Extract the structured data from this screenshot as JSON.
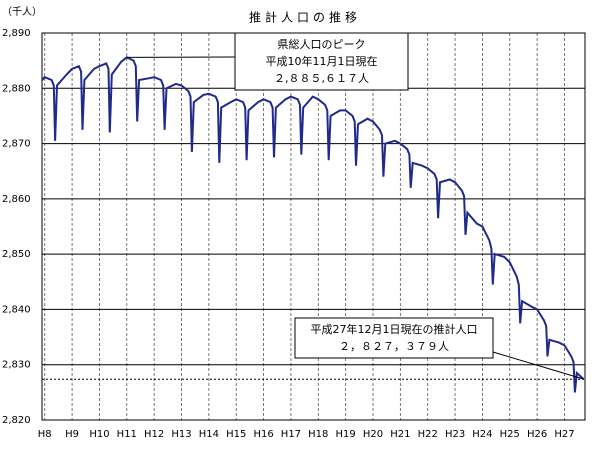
{
  "chart_data": {
    "type": "line",
    "title": "推計人口の推移",
    "y_unit": "（千人）",
    "color": "#1f2a8c",
    "grid": true,
    "x": [
      7.9,
      8.0,
      8.25,
      8.33,
      8.38,
      8.45,
      8.8,
      9.0,
      9.25,
      9.33,
      9.38,
      9.45,
      9.8,
      10.0,
      10.25,
      10.33,
      10.38,
      10.45,
      10.8,
      11.0,
      11.25,
      11.33,
      11.38,
      11.45,
      11.8,
      12.0,
      12.25,
      12.33,
      12.38,
      12.45,
      12.8,
      13.0,
      13.25,
      13.33,
      13.38,
      13.45,
      13.8,
      14.0,
      14.25,
      14.33,
      14.38,
      14.45,
      14.8,
      15.0,
      15.25,
      15.33,
      15.38,
      15.45,
      15.8,
      16.0,
      16.25,
      16.33,
      16.38,
      16.45,
      16.8,
      17.0,
      17.25,
      17.33,
      17.38,
      17.45,
      17.8,
      18.0,
      18.25,
      18.33,
      18.38,
      18.45,
      18.8,
      19.0,
      19.25,
      19.33,
      19.38,
      19.45,
      19.8,
      20.0,
      20.25,
      20.33,
      20.38,
      20.45,
      20.8,
      21.0,
      21.25,
      21.33,
      21.38,
      21.45,
      21.8,
      22.0,
      22.25,
      22.33,
      22.38,
      22.45,
      22.8,
      23.0,
      23.25,
      23.33,
      23.38,
      23.45,
      23.8,
      24.0,
      24.25,
      24.33,
      24.38,
      24.45,
      24.8,
      25.0,
      25.25,
      25.33,
      25.38,
      25.45,
      25.8,
      26.0,
      26.25,
      26.33,
      26.38,
      26.45,
      26.8,
      27.0,
      27.25,
      27.33,
      27.38,
      27.45,
      27.7
    ],
    "values": [
      2881.5,
      2882,
      2881.5,
      2880.5,
      2870.5,
      2880.5,
      2882.5,
      2883.5,
      2884,
      2883,
      2872.5,
      2881.5,
      2883.5,
      2884,
      2884.5,
      2883.5,
      2872,
      2882.5,
      2884.8,
      2885.6,
      2885,
      2884,
      2874,
      2881.5,
      2881.8,
      2882,
      2881.5,
      2880.5,
      2872.5,
      2880,
      2880.8,
      2880.5,
      2879.5,
      2878.5,
      2868.5,
      2877.5,
      2878.8,
      2879,
      2878.5,
      2877.5,
      2866.5,
      2876.5,
      2877.5,
      2878,
      2877.5,
      2876.5,
      2867,
      2876,
      2877.5,
      2878,
      2877.5,
      2876.5,
      2867.5,
      2876.5,
      2878,
      2878.5,
      2878,
      2877,
      2868,
      2876.5,
      2878.5,
      2878,
      2877,
      2876,
      2867,
      2875,
      2876,
      2876,
      2875,
      2874,
      2866,
      2873.5,
      2874.5,
      2874,
      2872.5,
      2871.5,
      2864,
      2870,
      2870.5,
      2870,
      2869,
      2868,
      2862,
      2866.5,
      2866,
      2865.5,
      2864.5,
      2863.5,
      2856.5,
      2863,
      2863.5,
      2863,
      2861.5,
      2860.5,
      2853.5,
      2857.5,
      2855.5,
      2855,
      2852.5,
      2851,
      2844.5,
      2850,
      2849.5,
      2848.5,
      2846,
      2844.5,
      2837.5,
      2841.5,
      2840.5,
      2840,
      2838,
      2837,
      2831.5,
      2834.5,
      2834,
      2833.5,
      2831.5,
      2830.5,
      2825,
      2828.5,
      2827.4
    ],
    "xlim": [
      7.9,
      27.75
    ],
    "xticks": [
      {
        "value": 8,
        "label": "H8"
      },
      {
        "value": 9,
        "label": "H9"
      },
      {
        "value": 10,
        "label": "H10"
      },
      {
        "value": 11,
        "label": "H11"
      },
      {
        "value": 12,
        "label": "H12"
      },
      {
        "value": 13,
        "label": "H13"
      },
      {
        "value": 14,
        "label": "H14"
      },
      {
        "value": 15,
        "label": "H15"
      },
      {
        "value": 16,
        "label": "H16"
      },
      {
        "value": 17,
        "label": "H17"
      },
      {
        "value": 18,
        "label": "H18"
      },
      {
        "value": 19,
        "label": "H19"
      },
      {
        "value": 20,
        "label": "H20"
      },
      {
        "value": 21,
        "label": "H21"
      },
      {
        "value": 22,
        "label": "H22"
      },
      {
        "value": 23,
        "label": "H23"
      },
      {
        "value": 24,
        "label": "H24"
      },
      {
        "value": 25,
        "label": "H25"
      },
      {
        "value": 26,
        "label": "H26"
      },
      {
        "value": 27,
        "label": "H27"
      }
    ],
    "ylim": [
      2820,
      2890
    ],
    "yticks": [
      {
        "value": 2820,
        "label": "2,820"
      },
      {
        "value": 2830,
        "label": "2,830"
      },
      {
        "value": 2840,
        "label": "2,840"
      },
      {
        "value": 2850,
        "label": "2,850"
      },
      {
        "value": 2860,
        "label": "2,860"
      },
      {
        "value": 2870,
        "label": "2,870"
      },
      {
        "value": 2880,
        "label": "2,880"
      },
      {
        "value": 2890,
        "label": "2,890"
      }
    ],
    "reference_line": 2827.379,
    "annotations": [
      {
        "lines": [
          "県総人口のピーク",
          "平成10年11月1日現在",
          "２,８８５,６１７人"
        ],
        "x": 11.0,
        "y": 2885.6
      },
      {
        "lines": [
          "平成27年12月1日現在の推計人口",
          "２，８２７，３７９人"
        ],
        "x": 27.7,
        "y": 2827.4
      }
    ]
  }
}
